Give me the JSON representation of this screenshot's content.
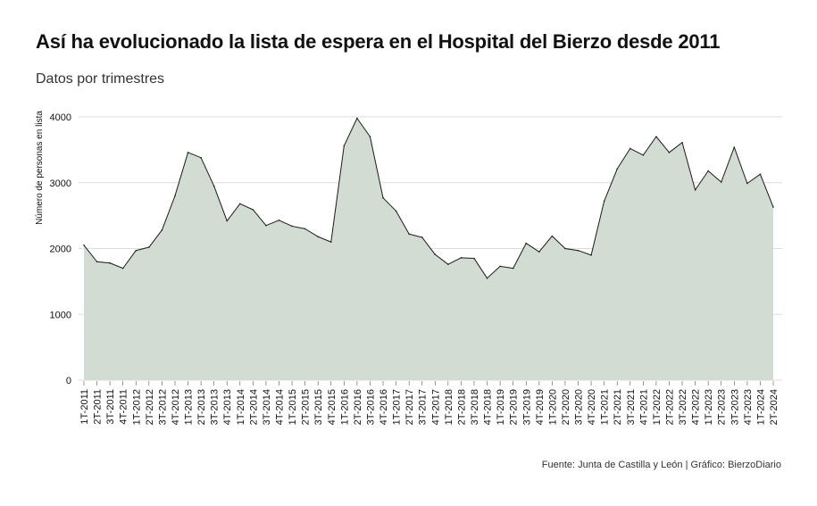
{
  "header": {
    "title": "Así ha evolucionado la lista de espera en el Hospital del Bierzo desde 2011",
    "subtitle": "Datos por trimestres"
  },
  "footer": {
    "source": "Fuente: Junta de Castilla y León | Gráfico: BierzoDiario"
  },
  "colors": {
    "area_fill": "#d3dcd2",
    "line": "#1a1a1a",
    "grid": "#dddddd"
  },
  "chart_data": {
    "type": "area",
    "ylabel": "Número de personas en lista",
    "ylim": [
      0,
      4000
    ],
    "yticks": [
      0,
      1000,
      2000,
      3000,
      4000
    ],
    "grid": "horizontal",
    "categories": [
      "1T-2011",
      "2T-2011",
      "3T-2011",
      "4T-2011",
      "1T-2012",
      "2T-2012",
      "3T-2012",
      "4T-2012",
      "1T-2013",
      "2T-2013",
      "3T-2013",
      "4T-2013",
      "1T-2014",
      "2T-2014",
      "3T-2014",
      "4T-2014",
      "1T-2015",
      "2T-2015",
      "3T-2015",
      "4T-2015",
      "1T-2016",
      "2T-2016",
      "3T-2016",
      "4T-2016",
      "1T-2017",
      "2T-2017",
      "3T-2017",
      "4T-2017",
      "1T-2018",
      "2T-2018",
      "3T-2018",
      "4T-2018",
      "1T-2019",
      "2T-2019",
      "3T-2019",
      "4T-2019",
      "1T-2020",
      "2T-2020",
      "3T-2020",
      "4T-2020",
      "1T-2021",
      "2T-2021",
      "3T-2021",
      "4T-2021",
      "1T-2022",
      "2T-2022",
      "3T-2022",
      "4T-2022",
      "1T-2023",
      "2T-2023",
      "3T-2023",
      "4T-2023",
      "1T-2024",
      "2T-2024"
    ],
    "values": [
      2050,
      1800,
      1780,
      1700,
      1970,
      2020,
      2280,
      2800,
      3460,
      3380,
      2950,
      2420,
      2680,
      2590,
      2350,
      2430,
      2340,
      2300,
      2180,
      2100,
      3560,
      3980,
      3700,
      2770,
      2570,
      2220,
      2170,
      1910,
      1760,
      1860,
      1850,
      1550,
      1730,
      1700,
      2080,
      1950,
      2190,
      2000,
      1970,
      1900,
      2720,
      3210,
      3520,
      3420,
      3700,
      3460,
      3610,
      2890,
      3180,
      3010,
      3540,
      2990,
      3130,
      2630
    ]
  }
}
